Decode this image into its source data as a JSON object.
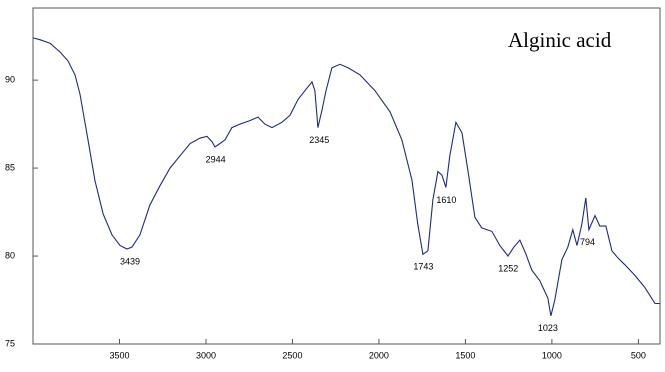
{
  "chart_data": {
    "type": "line",
    "title": "Alginic acid",
    "x": [
      4000,
      3960,
      3902,
      3844,
      3798,
      3757,
      3728,
      3682,
      3642,
      3595,
      3543,
      3497,
      3457,
      3428,
      3382,
      3324,
      3266,
      3208,
      3150,
      3092,
      3035,
      2994,
      2965,
      2948,
      2919,
      2890,
      2850,
      2803,
      2746,
      2699,
      2659,
      2618,
      2561,
      2514,
      2468,
      2428,
      2387,
      2370,
      2353,
      2329,
      2306,
      2272,
      2225,
      2179,
      2110,
      2023,
      1936,
      1867,
      1809,
      1775,
      1746,
      1717,
      1688,
      1659,
      1636,
      1613,
      1590,
      1555,
      1520,
      1486,
      1445,
      1405,
      1347,
      1301,
      1254,
      1220,
      1185,
      1150,
      1116,
      1070,
      1023,
      1006,
      983,
      942,
      908,
      879,
      855,
      827,
      804,
      786,
      751,
      723,
      688,
      653,
      619,
      578,
      520,
      462,
      404,
      375
    ],
    "series": [
      {
        "color": "#1f2a80",
        "values": [
          92.4,
          92.3,
          92.1,
          91.6,
          91.1,
          90.3,
          89.2,
          86.6,
          84.3,
          82.4,
          81.2,
          80.6,
          80.4,
          80.5,
          81.2,
          82.9,
          84.0,
          85.0,
          85.7,
          86.4,
          86.7,
          86.8,
          86.5,
          86.2,
          86.4,
          86.6,
          87.3,
          87.5,
          87.7,
          87.9,
          87.5,
          87.3,
          87.6,
          88.0,
          88.9,
          89.4,
          89.9,
          89.4,
          87.3,
          88.3,
          89.4,
          90.7,
          90.9,
          90.7,
          90.3,
          89.4,
          88.2,
          86.6,
          84.3,
          81.8,
          80.1,
          80.3,
          83.2,
          84.8,
          84.6,
          83.9,
          85.7,
          87.6,
          87.0,
          84.9,
          82.2,
          81.6,
          81.4,
          80.6,
          80.0,
          80.5,
          80.9,
          80.1,
          79.2,
          78.6,
          77.6,
          76.6,
          77.5,
          79.8,
          80.5,
          81.5,
          80.6,
          81.8,
          83.3,
          81.5,
          82.3,
          81.7,
          81.7,
          80.3,
          79.9,
          79.5,
          78.9,
          78.2,
          77.3,
          77.3
        ]
      }
    ],
    "xlim": [
      4000,
      375
    ],
    "ylim": [
      75,
      94.1
    ],
    "xticks": [
      3500,
      3000,
      2500,
      2000,
      1500,
      1000,
      500
    ],
    "yticks": [
      75,
      80,
      85,
      90
    ],
    "annotations": [
      {
        "label": "3439",
        "x": 3439,
        "y": 80.4
      },
      {
        "label": "2944",
        "x": 2944,
        "y": 86.2
      },
      {
        "label": "2345",
        "x": 2345,
        "y": 87.3
      },
      {
        "label": "1743",
        "x": 1743,
        "y": 80.1
      },
      {
        "label": "1610",
        "x": 1610,
        "y": 83.9
      },
      {
        "label": "1252",
        "x": 1252,
        "y": 80.0
      },
      {
        "label": "1023",
        "x": 1023,
        "y": 76.6
      },
      {
        "label": "794",
        "x": 794,
        "y": 81.5
      }
    ]
  }
}
